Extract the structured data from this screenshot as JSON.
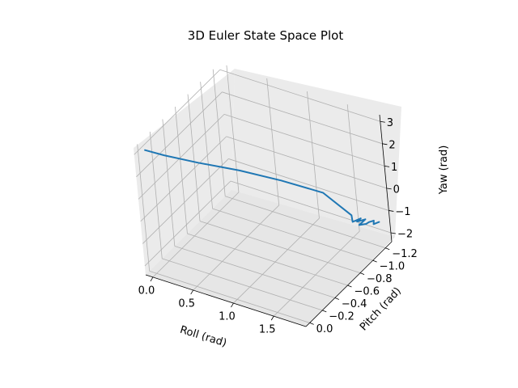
{
  "chart_data": {
    "type": "line",
    "title": "3D Euler State Space Plot",
    "xlabel": "Roll (rad)",
    "ylabel": "Pitch (rad)",
    "zlabel": "Yaw (rad)",
    "x_ticks": [
      "0.0",
      "0.5",
      "1.0",
      "1.5"
    ],
    "y_ticks": [
      "−1.2",
      "−1.0",
      "−0.8",
      "−0.6",
      "−0.4",
      "−0.2",
      "0.0"
    ],
    "z_ticks": [
      "−2",
      "−1",
      "0",
      "1",
      "2",
      "3"
    ],
    "xlim": [
      -0.09,
      1.9
    ],
    "ylim": [
      -1.3,
      0.06
    ],
    "zlim": [
      -2.4,
      3.3
    ],
    "grid": true,
    "series": [
      {
        "color": "#1f77b4",
        "x": [
          0.0,
          0.15,
          0.4,
          0.7,
          1.0,
          1.3,
          1.55,
          1.6,
          1.62,
          1.64,
          1.66,
          1.68,
          1.7,
          1.72,
          1.74,
          1.76,
          1.78
        ],
        "y": [
          0.0,
          -0.1,
          -0.3,
          -0.55,
          -0.8,
          -1.05,
          -1.15,
          -1.1,
          -1.2,
          -1.12,
          -1.22,
          -1.1,
          -1.18,
          -1.2,
          -1.25,
          -1.22,
          -1.28
        ],
        "z": [
          3.14,
          2.8,
          2.2,
          1.5,
          0.7,
          -0.2,
          -1.2,
          -1.3,
          -1.4,
          -1.3,
          -1.45,
          -1.35,
          -1.5,
          -1.45,
          -1.5,
          -1.55,
          -1.6
        ]
      }
    ]
  }
}
